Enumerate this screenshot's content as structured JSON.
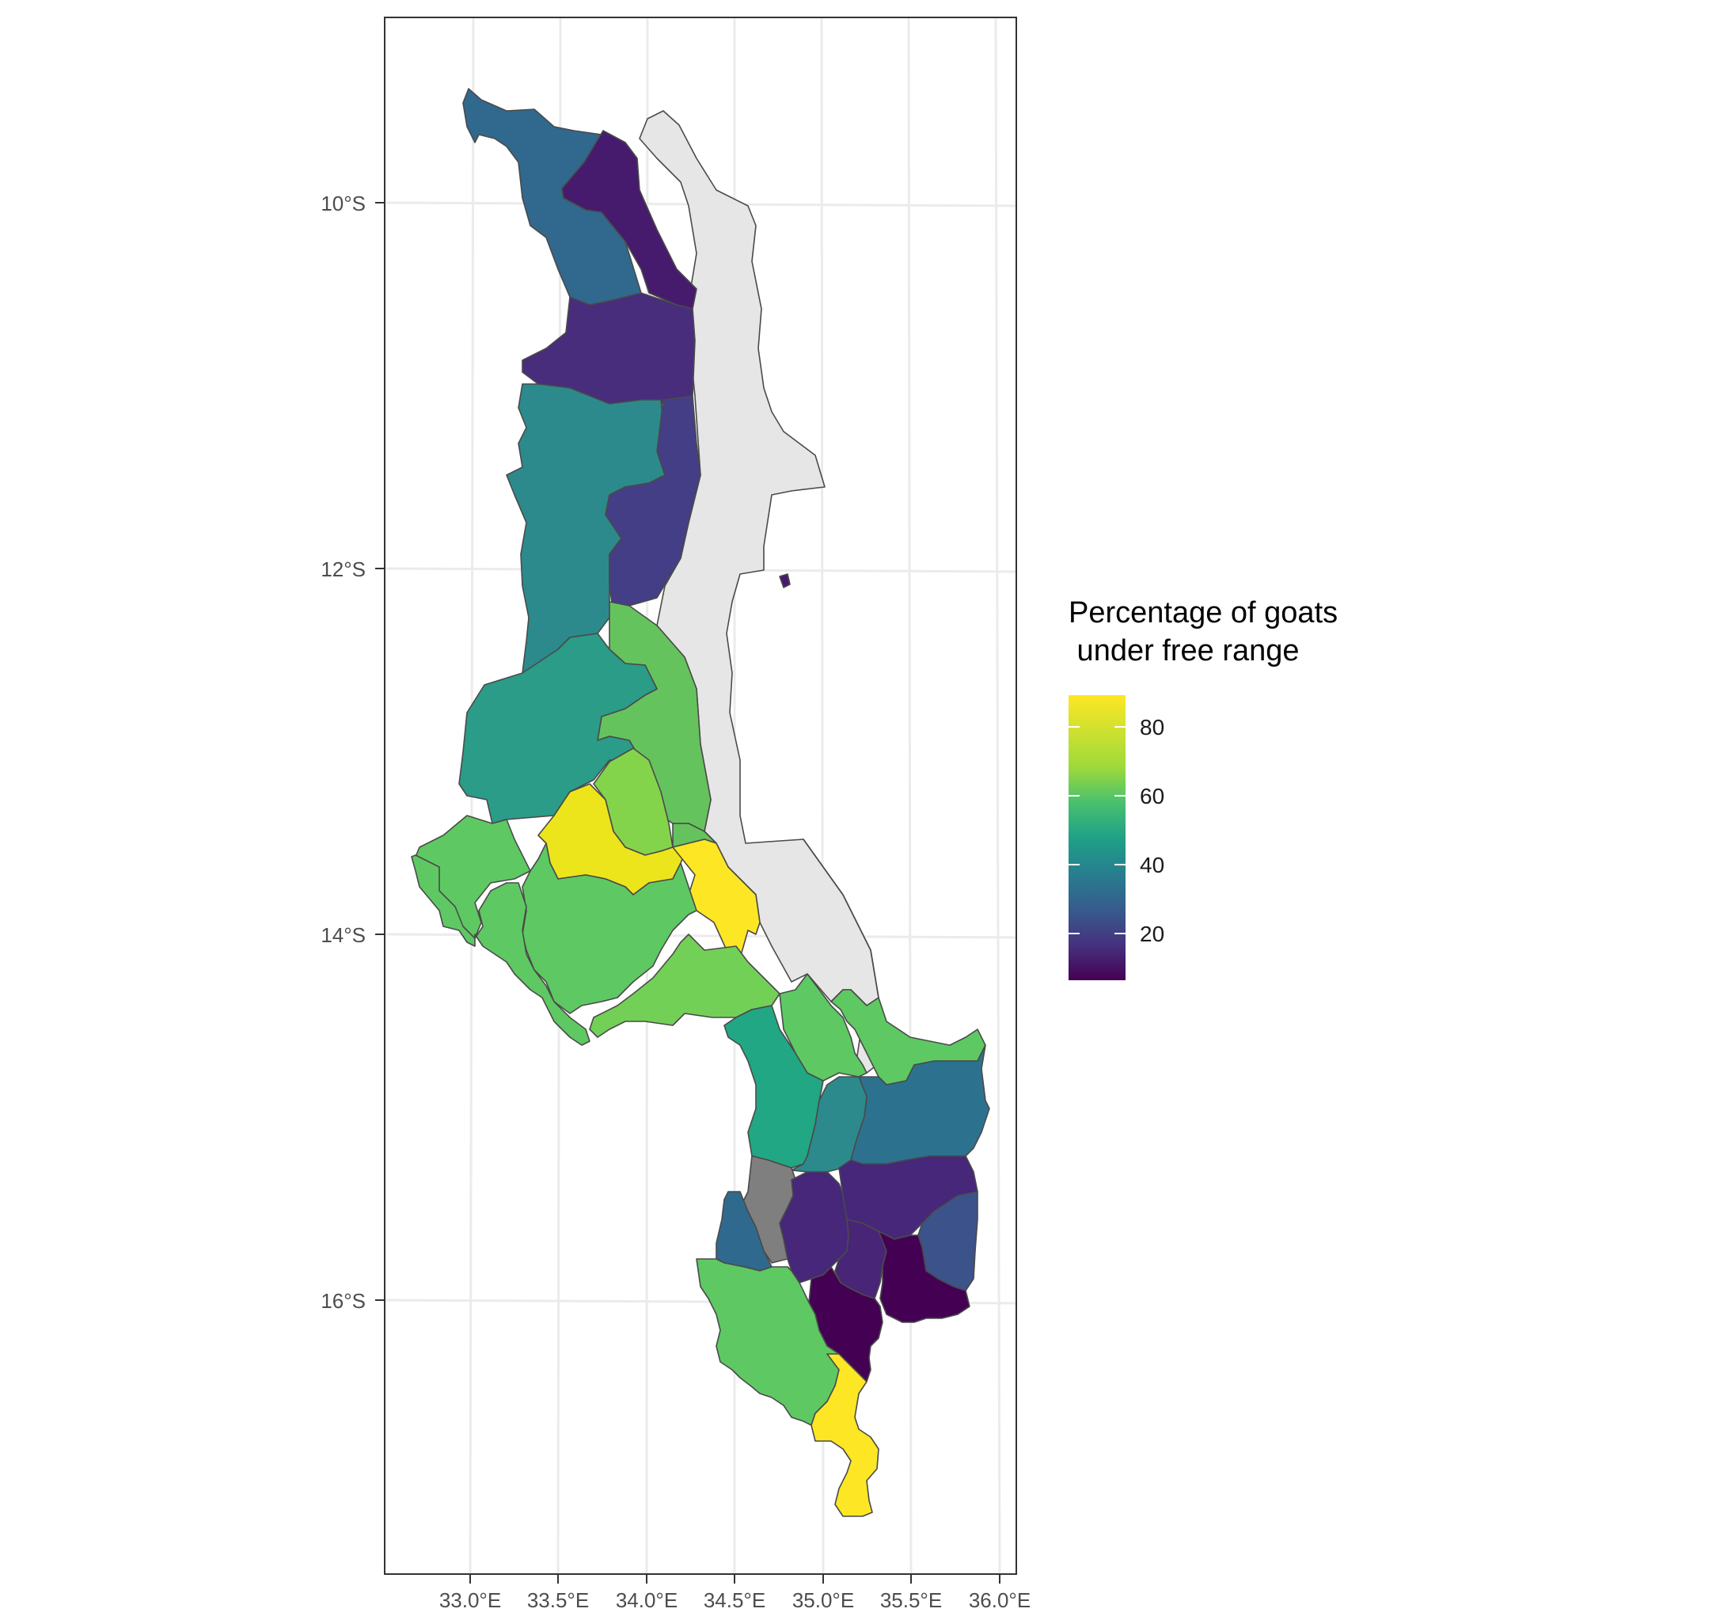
{
  "map": {
    "axes": {
      "x_ticks": [
        "33.0°E",
        "33.5°E",
        "34.0°E",
        "34.5°E",
        "35.0°E",
        "35.5°E",
        "36.0°E"
      ],
      "y_ticks": [
        "10°S",
        "12°S",
        "14°S",
        "16°S"
      ]
    },
    "legend": {
      "title_line1": "Percentage of goats",
      "title_line2": " under free range",
      "labels": [
        "80",
        "60",
        "40",
        "20"
      ],
      "colors": {
        "high": "#fde725",
        "mid_high": "#5ec962",
        "mid": "#21918c",
        "mid_low": "#3b528b",
        "low": "#440154"
      }
    },
    "colors": {
      "lake": "#e6e6e6",
      "missing": "#7f7f7f"
    }
  }
}
